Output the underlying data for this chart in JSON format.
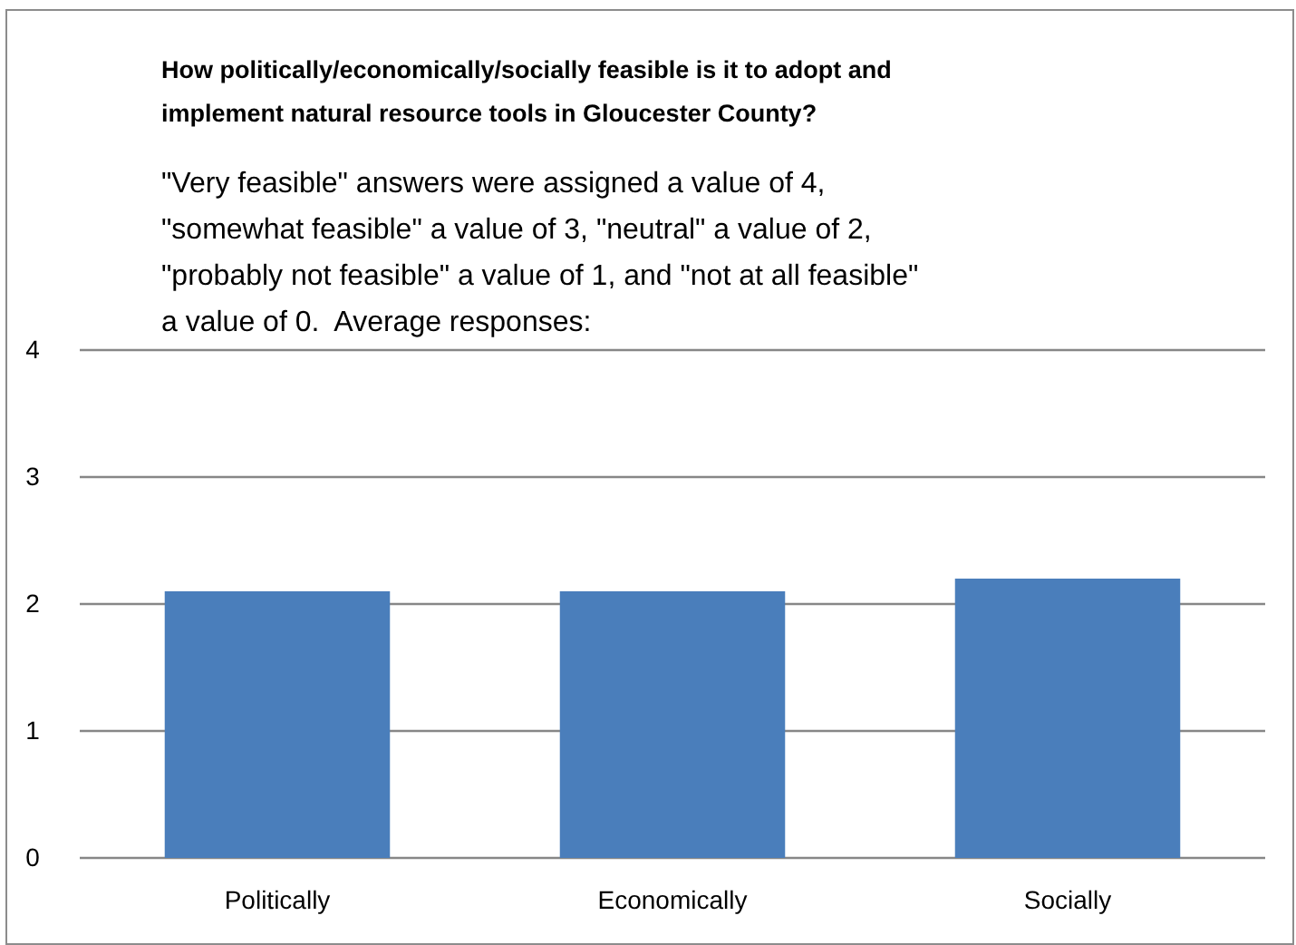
{
  "chart_data": {
    "type": "bar",
    "title": "How politically/economically/socially feasible is it to adopt and implement natural resource tools in Gloucester County?",
    "subtitle": "\"Very feasible\" answers were assigned a value of 4,\n\"somewhat feasible\" a value of 3, \"neutral\" a value of 2,\n\"probably not feasible\" a value of 1, and \"not at all feasible\"\na value of 0.  Average responses:",
    "categories": [
      "Politically",
      "Economically",
      "Socially"
    ],
    "values": [
      2.1,
      2.1,
      2.2
    ],
    "color": "#4a7ebb",
    "ylim": [
      0,
      4
    ],
    "yticks": [
      0,
      1,
      2,
      3,
      4
    ],
    "grid": "y"
  }
}
